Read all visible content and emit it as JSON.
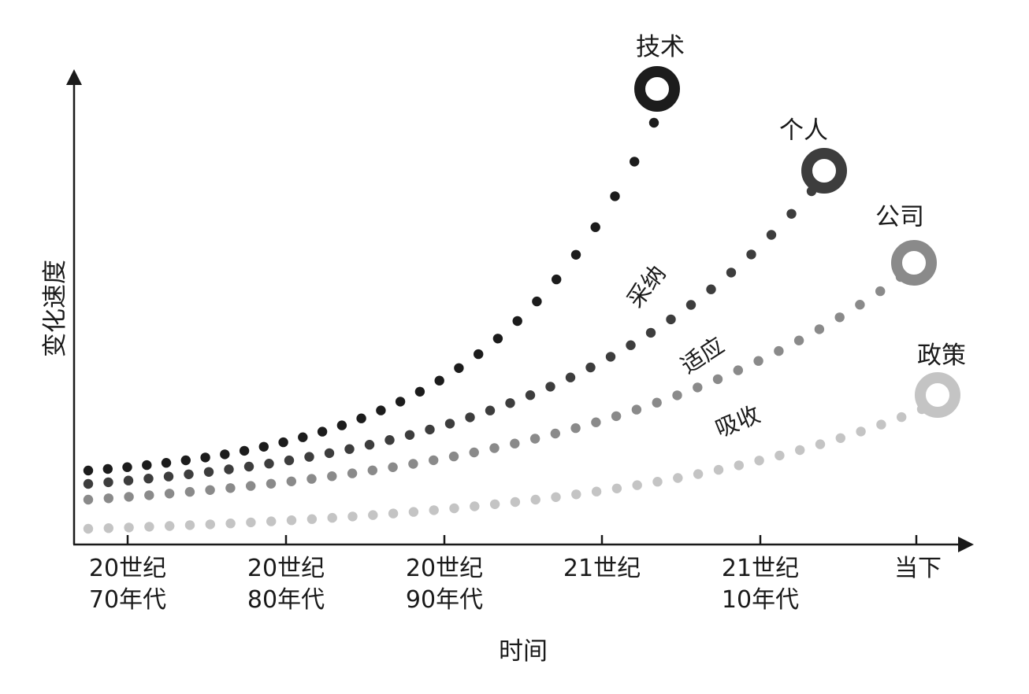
{
  "diagram": {
    "y_axis_title": "变化速度",
    "x_axis_title": "时间",
    "x_ticks": [
      {
        "line1": "20世纪",
        "line2": "70年代"
      },
      {
        "line1": "20世纪",
        "line2": "80年代"
      },
      {
        "line1": "20世纪",
        "line2": "90年代"
      },
      {
        "line1": "21世纪",
        "line2": ""
      },
      {
        "line1": "21世纪",
        "line2": "10年代"
      },
      {
        "line1": "当下",
        "line2": ""
      }
    ],
    "curves": [
      {
        "label": "技术",
        "color": "#1c1c1c"
      },
      {
        "label": "个人",
        "color": "#3d3d3d"
      },
      {
        "label": "公司",
        "color": "#8a8a8a"
      },
      {
        "label": "政策",
        "color": "#c4c4c4"
      }
    ],
    "phases": [
      "采纳",
      "适应",
      "吸收"
    ]
  }
}
